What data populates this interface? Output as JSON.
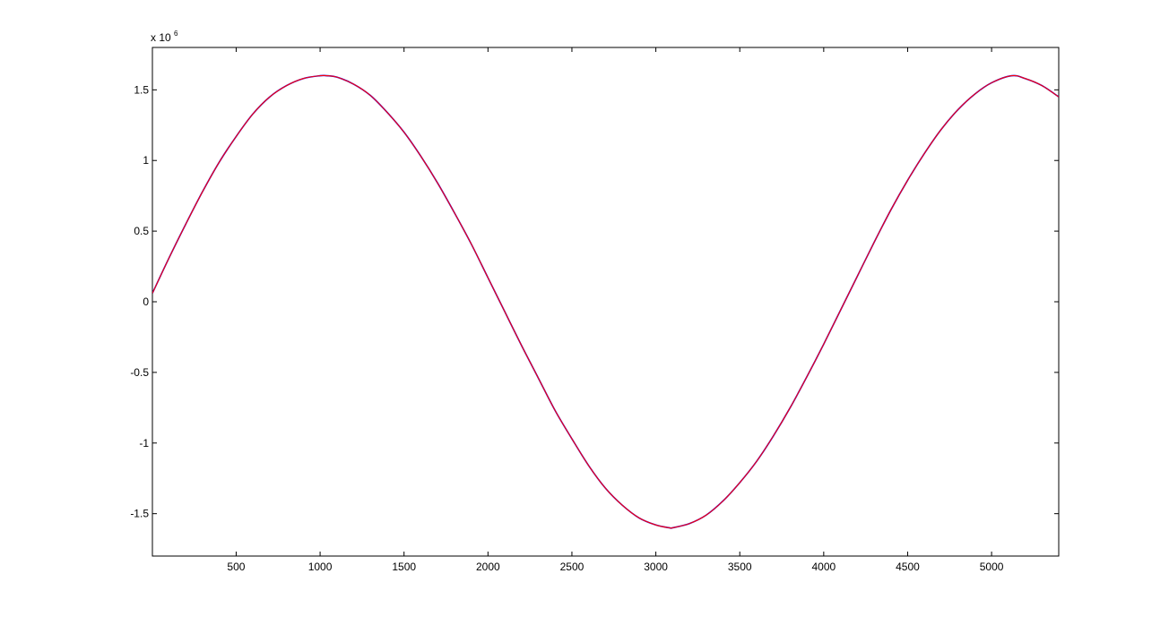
{
  "chart_data": {
    "type": "line",
    "title": "",
    "xlabel": "",
    "ylabel": "",
    "xlim": [
      1,
      5400
    ],
    "ylim": [
      -1.8,
      1.8
    ],
    "y_exponent_label": {
      "base": "x 10",
      "exponent": "6"
    },
    "x_ticks": [
      500,
      1000,
      1500,
      2000,
      2500,
      3000,
      3500,
      4000,
      4500,
      5000
    ],
    "x_tick_labels": [
      "500",
      "1000",
      "1500",
      "2000",
      "2500",
      "3000",
      "3500",
      "4000",
      "4500",
      "5000"
    ],
    "y_ticks": [
      -1.5,
      -1,
      -0.5,
      0,
      0.5,
      1,
      1.5
    ],
    "y_tick_labels": [
      "-1.5",
      "-1",
      "-0.5",
      "0",
      "0.5",
      "1",
      "1.5"
    ],
    "grid": false,
    "legend": "none",
    "series": [
      {
        "color": "#0000ff",
        "x": [
          1,
          100,
          200,
          300,
          400,
          500,
          600,
          700,
          800,
          900,
          1000,
          1040,
          1100,
          1200,
          1300,
          1400,
          1500,
          1600,
          1700,
          1800,
          1900,
          2000,
          2100,
          2200,
          2300,
          2400,
          2500,
          2600,
          2700,
          2800,
          2900,
          3000,
          3080,
          3100,
          3200,
          3300,
          3400,
          3500,
          3600,
          3700,
          3800,
          3900,
          4000,
          4100,
          4200,
          4300,
          4400,
          4500,
          4600,
          4700,
          4800,
          4900,
          5000,
          5120,
          5200,
          5300,
          5400
        ],
        "y": [
          0.06,
          0.31,
          0.55,
          0.78,
          0.99,
          1.17,
          1.33,
          1.45,
          1.53,
          1.58,
          1.6,
          1.6,
          1.59,
          1.54,
          1.46,
          1.34,
          1.2,
          1.03,
          0.84,
          0.63,
          0.41,
          0.17,
          -0.07,
          -0.31,
          -0.54,
          -0.77,
          -0.97,
          -1.16,
          -1.32,
          -1.44,
          -1.53,
          -1.58,
          -1.6,
          -1.6,
          -1.57,
          -1.51,
          -1.41,
          -1.28,
          -1.13,
          -0.95,
          -0.75,
          -0.53,
          -0.3,
          -0.06,
          0.18,
          0.42,
          0.65,
          0.86,
          1.05,
          1.22,
          1.36,
          1.47,
          1.55,
          1.6,
          1.58,
          1.53,
          1.45
        ]
      },
      {
        "color": "#ff0000",
        "x": [
          1,
          100,
          200,
          300,
          400,
          500,
          600,
          700,
          800,
          900,
          1000,
          1040,
          1100,
          1200,
          1300,
          1400,
          1500,
          1600,
          1700,
          1800,
          1900,
          2000,
          2100,
          2200,
          2300,
          2400,
          2500,
          2600,
          2700,
          2800,
          2900,
          3000,
          3080,
          3100,
          3200,
          3300,
          3400,
          3500,
          3600,
          3700,
          3800,
          3900,
          4000,
          4100,
          4200,
          4300,
          4400,
          4500,
          4600,
          4700,
          4800,
          4900,
          5000,
          5120,
          5200,
          5300,
          5400
        ],
        "y": [
          0.06,
          0.31,
          0.55,
          0.78,
          0.99,
          1.17,
          1.33,
          1.45,
          1.53,
          1.58,
          1.6,
          1.6,
          1.59,
          1.54,
          1.46,
          1.34,
          1.2,
          1.03,
          0.84,
          0.63,
          0.41,
          0.17,
          -0.07,
          -0.31,
          -0.54,
          -0.77,
          -0.97,
          -1.16,
          -1.32,
          -1.44,
          -1.53,
          -1.58,
          -1.6,
          -1.6,
          -1.57,
          -1.51,
          -1.41,
          -1.28,
          -1.13,
          -0.95,
          -0.75,
          -0.53,
          -0.3,
          -0.06,
          0.18,
          0.42,
          0.65,
          0.86,
          1.05,
          1.22,
          1.36,
          1.47,
          1.55,
          1.6,
          1.58,
          1.53,
          1.45
        ]
      }
    ]
  }
}
